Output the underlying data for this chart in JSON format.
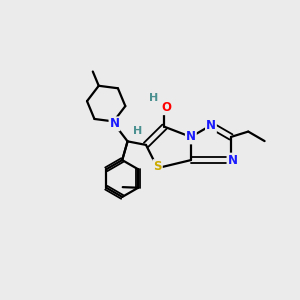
{
  "background_color": "#ebebeb",
  "atom_colors": {
    "N": "#1a1aff",
    "O": "#ff0000",
    "S": "#ccaa00",
    "H_label": "#4a9090",
    "C": "#000000"
  },
  "figsize": [
    3.0,
    3.0
  ],
  "dpi": 100
}
